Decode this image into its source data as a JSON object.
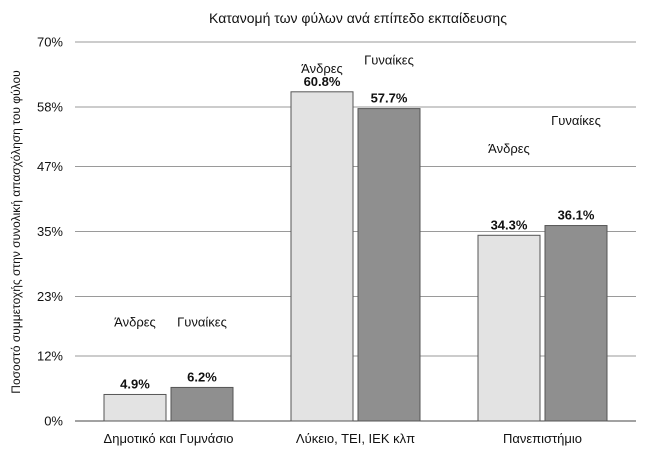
{
  "chart_data": {
    "type": "bar",
    "title": "Κατανομή των φύλων ανά επίπεδο εκπαίδευσης",
    "ylabel": "Ποσοστό συμμετοχής στην συνολική απασχόληση του φύλου",
    "xlabel": "",
    "ylim": [
      0,
      70
    ],
    "yticks": [
      0,
      12,
      23,
      35,
      47,
      58,
      70
    ],
    "ytick_labels": [
      "0%",
      "12%",
      "23%",
      "35%",
      "47%",
      "58%",
      "70%"
    ],
    "grid": true,
    "categories": [
      "Δημοτικό και Γυμνάσιο",
      "Λύκειο, ΤΕΙ, ΙΕΚ κλπ",
      "Πανεπιστήμιο"
    ],
    "series": [
      {
        "values": [
          4.9,
          60.8,
          34.3
        ],
        "color": "#e3e3e3"
      },
      {
        "values": [
          6.2,
          57.7,
          36.1
        ],
        "color": "#8f8f8f"
      }
    ],
    "value_labels": [
      [
        "4.9%",
        "60.8%",
        "34.3%"
      ],
      [
        "6.2%",
        "57.7%",
        "36.1%"
      ]
    ],
    "annotations": [
      {
        "text": "Άνδρες",
        "category": 0,
        "series": 0,
        "y": 17.5
      },
      {
        "text": "Γυναίκες",
        "category": 0,
        "series": 1,
        "y": 17.5
      },
      {
        "text": "Άνδρες",
        "category": 1,
        "series": 0,
        "y": 64.3
      },
      {
        "text": "Γυναίκες",
        "category": 1,
        "series": 1,
        "y": 65.8
      },
      {
        "text": "Άνδρες",
        "category": 2,
        "series": 0,
        "y": 49.5
      },
      {
        "text": "Γυναίκες",
        "category": 2,
        "series": 1,
        "y": 54.7
      }
    ]
  }
}
